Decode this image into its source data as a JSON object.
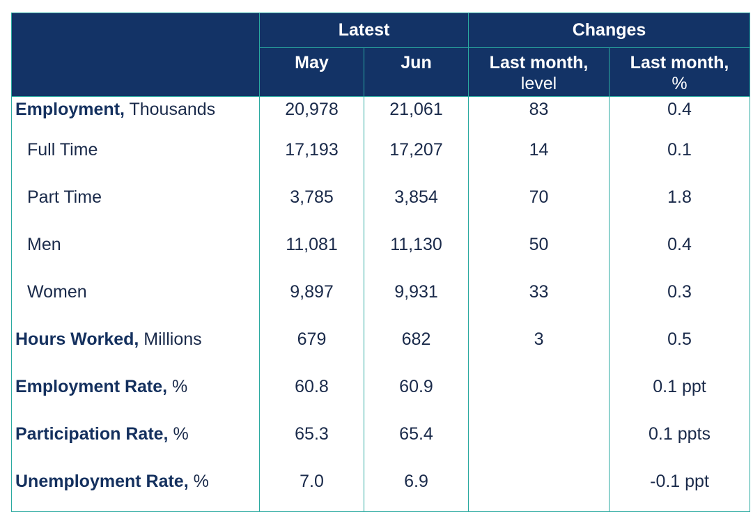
{
  "header": {
    "latest": "Latest",
    "changes": "Changes",
    "may": "May",
    "jun": "Jun",
    "lm_level_line1": "Last month,",
    "lm_level_line2": "level",
    "lm_pct_line1": "Last month,",
    "lm_pct_line2": "%"
  },
  "rows": [
    {
      "bold": "Employment,",
      "rest": " Thousands",
      "may": "20,978",
      "jun": "21,061",
      "level": "83",
      "pct": "0.4"
    },
    {
      "bold": "",
      "rest": "Full Time",
      "may": "17,193",
      "jun": "17,207",
      "level": "14",
      "pct": "0.1"
    },
    {
      "bold": "",
      "rest": "Part Time",
      "may": "3,785",
      "jun": "3,854",
      "level": "70",
      "pct": "1.8"
    },
    {
      "bold": "",
      "rest": "Men",
      "may": "11,081",
      "jun": "11,130",
      "level": "50",
      "pct": "0.4"
    },
    {
      "bold": "",
      "rest": "Women",
      "may": "9,897",
      "jun": "9,931",
      "level": "33",
      "pct": "0.3"
    },
    {
      "bold": "Hours Worked,",
      "rest": " Millions",
      "may": "679",
      "jun": "682",
      "level": "3",
      "pct": "0.5"
    },
    {
      "bold": "Employment Rate,",
      "rest": " %",
      "may": "60.8",
      "jun": "60.9",
      "level": "",
      "pct": "0.1 ppt"
    },
    {
      "bold": "Participation Rate,",
      "rest": " %",
      "may": "65.3",
      "jun": "65.4",
      "level": "",
      "pct": "0.1 ppts"
    },
    {
      "bold": "Unemployment Rate,",
      "rest": " %",
      "may": "7.0",
      "jun": "6.9",
      "level": "",
      "pct": "-0.1 ppt"
    }
  ],
  "colors": {
    "header_bg": "#133366",
    "border": "#2aa9a0",
    "text": "#1a2a4a"
  }
}
